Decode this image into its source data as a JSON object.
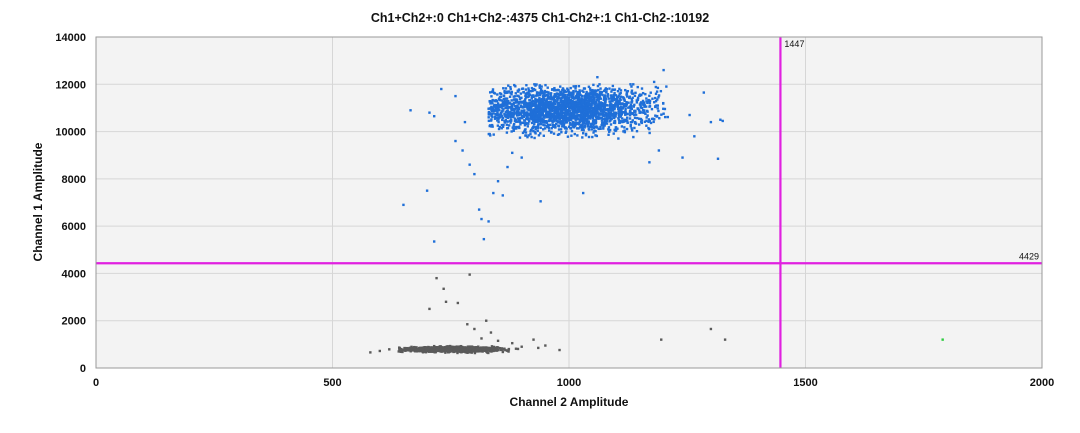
{
  "chart_data": {
    "type": "scatter",
    "title": "Ch1+Ch2+:0  Ch1+Ch2-:4375  Ch1-Ch2+:1  Ch1-Ch2-:10192",
    "xlabel": "Channel 2 Amplitude",
    "ylabel": "Channel 1 Amplitude",
    "xlim": [
      0,
      2000
    ],
    "ylim": [
      0,
      14000
    ],
    "xticks": [
      "0",
      "500",
      "1000",
      "1500",
      "2000"
    ],
    "yticks": [
      "0",
      "2000",
      "4000",
      "6000",
      "8000",
      "10000",
      "12000",
      "14000"
    ],
    "grid": true,
    "thresholds": {
      "vertical": {
        "value": 1447,
        "label": "1447"
      },
      "horizontal": {
        "value": 4429,
        "label": "4429"
      }
    },
    "quadrant_counts": {
      "ch1_pos_ch2_pos": 0,
      "ch1_pos_ch2_neg": 4375,
      "ch1_neg_ch2_pos": 1,
      "ch1_neg_ch2_neg": 10192
    },
    "series": [
      {
        "name": "Ch1+Ch2-",
        "color": "#1f6fd8",
        "cluster": {
          "x_center": 990,
          "y_center": 10950,
          "x_spread": 100,
          "y_spread": 480,
          "x_min": 830,
          "x_max": 1210,
          "y_min": 9700,
          "y_max": 12000
        },
        "points": [
          [
            650,
            6900
          ],
          [
            700,
            7500
          ],
          [
            715,
            5350
          ],
          [
            665,
            10900
          ],
          [
            705,
            10800
          ],
          [
            715,
            10650
          ],
          [
            730,
            11800
          ],
          [
            760,
            9600
          ],
          [
            775,
            9200
          ],
          [
            790,
            8600
          ],
          [
            800,
            8200
          ],
          [
            810,
            6700
          ],
          [
            820,
            5450
          ],
          [
            815,
            6300
          ],
          [
            830,
            6200
          ],
          [
            840,
            7400
          ],
          [
            850,
            7900
          ],
          [
            860,
            7300
          ],
          [
            870,
            8500
          ],
          [
            880,
            9100
          ],
          [
            900,
            8900
          ],
          [
            940,
            7050
          ],
          [
            1030,
            7400
          ],
          [
            1240,
            8900
          ],
          [
            1255,
            10700
          ],
          [
            1265,
            9800
          ],
          [
            1285,
            11650
          ],
          [
            1300,
            10400
          ],
          [
            1320,
            10500
          ],
          [
            1315,
            8850
          ],
          [
            1325,
            10450
          ],
          [
            1200,
            12600
          ],
          [
            1180,
            12100
          ],
          [
            1060,
            12300
          ],
          [
            1130,
            12000
          ],
          [
            760,
            11500
          ],
          [
            780,
            10400
          ],
          [
            1170,
            8700
          ],
          [
            1190,
            9200
          ]
        ]
      },
      {
        "name": "Ch1-Ch2-",
        "color": "#5a5a5a",
        "cluster": {
          "x_center": 755,
          "y_center": 790,
          "x_spread": 45,
          "y_spread": 45,
          "x_min": 640,
          "x_max": 900,
          "y_min": 620,
          "y_max": 960
        },
        "points": [
          [
            580,
            660
          ],
          [
            600,
            720
          ],
          [
            620,
            790
          ],
          [
            640,
            700
          ],
          [
            705,
            2500
          ],
          [
            720,
            3800
          ],
          [
            735,
            3350
          ],
          [
            740,
            2800
          ],
          [
            765,
            2750
          ],
          [
            790,
            3950
          ],
          [
            785,
            1850
          ],
          [
            800,
            1650
          ],
          [
            815,
            1250
          ],
          [
            825,
            2000
          ],
          [
            835,
            1500
          ],
          [
            850,
            1150
          ],
          [
            880,
            1050
          ],
          [
            900,
            900
          ],
          [
            925,
            1200
          ],
          [
            935,
            850
          ],
          [
            950,
            950
          ],
          [
            980,
            760
          ],
          [
            1195,
            1200
          ],
          [
            1300,
            1650
          ],
          [
            1330,
            1200
          ]
        ]
      },
      {
        "name": "Ch1-Ch2+",
        "color": "#2ecc40",
        "points": [
          [
            1790,
            1200
          ]
        ]
      }
    ]
  }
}
